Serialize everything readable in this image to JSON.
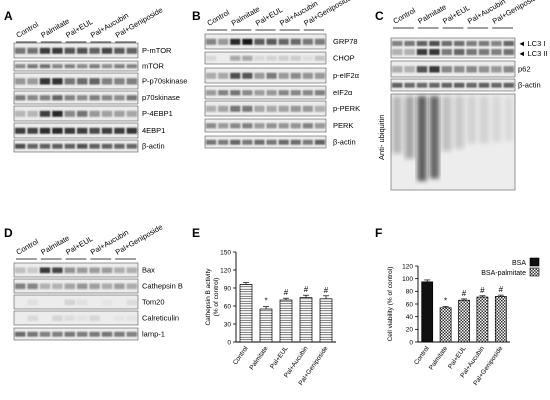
{
  "panels": {
    "A": {
      "letter": "A",
      "lanes": [
        "Control",
        "Palmitate",
        "Pal+EUL",
        "Pal+Aucubin",
        "Pal+Geniposide"
      ],
      "bands": [
        "P-mTOR",
        "mTOR",
        "P-p70skinase",
        "p70skinase",
        "P-4EBP1",
        "4EBP1",
        "β-actin"
      ]
    },
    "B": {
      "letter": "B",
      "lanes": [
        "Control",
        "Palmitate",
        "Pal+EUL",
        "Pal+Aucubin",
        "Pal+Geniposide"
      ],
      "bands": [
        "GRP78",
        "CHOP",
        "p-eIF2α",
        "eIF2α",
        "p-PERK",
        "PERK",
        "β-actin"
      ]
    },
    "C": {
      "letter": "C",
      "lanes": [
        "Control",
        "Palmitate",
        "Pal+EUL",
        "Pal+Aucubin",
        "Pal+Geniposide"
      ],
      "bands": [
        "◄ LC3 I",
        "◄ LC3 II",
        "p62",
        "β-actin"
      ],
      "side_label": "Anti- ubiquitin"
    },
    "D": {
      "letter": "D",
      "lanes": [
        "Control",
        "Palmitate",
        "Pal+EUL",
        "Pal+Aucubin",
        "Pal+Geniposide"
      ],
      "bands": [
        "Bax",
        "Cathepsin B",
        "Tom20",
        "Calreticulin",
        "lamp-1"
      ]
    },
    "E": {
      "letter": "E"
    },
    "F": {
      "letter": "F"
    }
  },
  "chart_data": [
    {
      "type": "bar",
      "panel": "E",
      "categories": [
        "Control",
        "Palmitate",
        "Pal+EUL",
        "Pal+Aucubin",
        "Pal+Geniposide"
      ],
      "values": [
        96,
        55,
        70,
        74,
        72
      ],
      "errors": [
        3,
        4,
        3,
        4,
        5
      ],
      "annotations": [
        "",
        "*",
        "#",
        "#",
        "#"
      ],
      "ylabel": "Cathepsin B activity\n(% of control)",
      "ylim": [
        0,
        150
      ],
      "yticks": [
        0,
        30,
        60,
        90,
        120,
        150
      ],
      "fill": "hatched"
    },
    {
      "type": "bar",
      "panel": "F",
      "categories": [
        "Control",
        "Palmitate",
        "Pal+EUL",
        "Pal+Aucubin",
        "Pal+Geniposide"
      ],
      "values": [
        95,
        54,
        66,
        71,
        72
      ],
      "errors": [
        3,
        2,
        2,
        2,
        2
      ],
      "annotations": [
        "",
        "*",
        "#",
        "#",
        "#"
      ],
      "ylabel": "Cell viability (% of control)",
      "ylim": [
        0,
        120
      ],
      "yticks": [
        0,
        20,
        40,
        60,
        80,
        100,
        120
      ],
      "legend": [
        "BSA",
        "BSA-palmitate"
      ],
      "fills": [
        "solid",
        "checkered",
        "checkered",
        "checkered",
        "checkered"
      ]
    }
  ]
}
